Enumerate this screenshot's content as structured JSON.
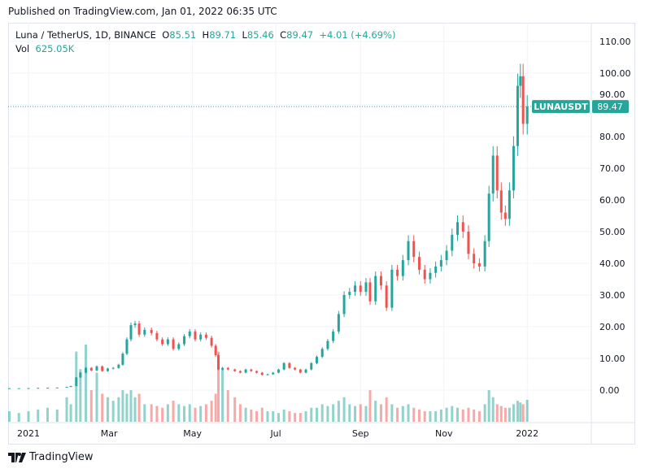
{
  "published": "Published on TradingView.com, Jan 01, 2022 06:35 UTC",
  "legend": {
    "symbol": "Luna / TetherUS, 1D, BINANCE",
    "o_label": "O",
    "o": "85.51",
    "h_label": "H",
    "h": "89.71",
    "l_label": "L",
    "l": "85.46",
    "c_label": "C",
    "c": "89.47",
    "change": "+4.01 (+4.69%)",
    "vol_label": "Vol",
    "vol": "625.05K"
  },
  "price_tag": {
    "symbol": "LUNAUSDT",
    "price": "89.47"
  },
  "logo": {
    "text": "TradingView"
  },
  "colors": {
    "up": "#26a69a",
    "down": "#ef5350",
    "grid": "#f0f3fa"
  },
  "chart_data": {
    "type": "candlestick",
    "y_ticks": [
      "110.00",
      "100.00",
      "90.00",
      "80.00",
      "70.00",
      "60.00",
      "50.00",
      "40.00",
      "30.00",
      "20.00",
      "10.00",
      "0.00"
    ],
    "x_ticks": [
      {
        "label": "2021",
        "date": "2021-01-01"
      },
      {
        "label": "Mar",
        "date": "2021-03-01"
      },
      {
        "label": "May",
        "date": "2021-05-01"
      },
      {
        "label": "Jul",
        "date": "2021-07-01"
      },
      {
        "label": "Sep",
        "date": "2021-09-01"
      },
      {
        "label": "Nov",
        "date": "2021-11-01"
      },
      {
        "label": "2022",
        "date": "2022-01-01"
      }
    ],
    "ylim": [
      0,
      110
    ],
    "last_price": 89.47,
    "series": [
      [
        "2020-12-18",
        0.6,
        300
      ],
      [
        "2020-12-25",
        0.6,
        250
      ],
      [
        "2021-01-01",
        0.65,
        300
      ],
      [
        "2021-01-08",
        0.7,
        350
      ],
      [
        "2021-01-15",
        0.75,
        400
      ],
      [
        "2021-01-22",
        0.8,
        350
      ],
      [
        "2021-01-29",
        1.0,
        700
      ],
      [
        "2021-02-01",
        1.3,
        500
      ],
      [
        "2021-02-05",
        4.0,
        2000
      ],
      [
        "2021-02-08",
        5.5,
        1500
      ],
      [
        "2021-02-12",
        7.0,
        2200
      ],
      [
        "2021-02-16",
        6.2,
        900
      ],
      [
        "2021-02-20",
        7.5,
        1400
      ],
      [
        "2021-02-24",
        6.0,
        800
      ],
      [
        "2021-02-28",
        6.8,
        700
      ],
      [
        "2021-03-04",
        7.0,
        600
      ],
      [
        "2021-03-08",
        8.0,
        700
      ],
      [
        "2021-03-11",
        11.5,
        900
      ],
      [
        "2021-03-14",
        16.0,
        800
      ],
      [
        "2021-03-17",
        20.5,
        900
      ],
      [
        "2021-03-20",
        21.0,
        700
      ],
      [
        "2021-03-23",
        17.5,
        800
      ],
      [
        "2021-03-27",
        19.0,
        500
      ],
      [
        "2021-04-01",
        18.0,
        500
      ],
      [
        "2021-04-05",
        16.0,
        450
      ],
      [
        "2021-04-09",
        14.5,
        400
      ],
      [
        "2021-04-13",
        16.0,
        500
      ],
      [
        "2021-04-17",
        13.0,
        600
      ],
      [
        "2021-04-21",
        14.5,
        500
      ],
      [
        "2021-04-25",
        17.0,
        450
      ],
      [
        "2021-04-29",
        18.5,
        500
      ],
      [
        "2021-05-03",
        16.0,
        400
      ],
      [
        "2021-05-07",
        17.5,
        450
      ],
      [
        "2021-05-11",
        16.5,
        500
      ],
      [
        "2021-05-15",
        14.0,
        600
      ],
      [
        "2021-05-18",
        11.0,
        800
      ],
      [
        "2021-05-20",
        6.5,
        2000
      ],
      [
        "2021-05-23",
        7.0,
        1500
      ],
      [
        "2021-05-27",
        6.5,
        900
      ],
      [
        "2021-06-01",
        6.0,
        700
      ],
      [
        "2021-06-05",
        5.5,
        500
      ],
      [
        "2021-06-09",
        6.5,
        400
      ],
      [
        "2021-06-13",
        6.0,
        350
      ],
      [
        "2021-06-17",
        5.5,
        300
      ],
      [
        "2021-06-21",
        4.8,
        400
      ],
      [
        "2021-06-25",
        5.0,
        300
      ],
      [
        "2021-06-29",
        5.5,
        300
      ],
      [
        "2021-07-03",
        6.5,
        250
      ],
      [
        "2021-07-07",
        8.5,
        350
      ],
      [
        "2021-07-11",
        7.0,
        300
      ],
      [
        "2021-07-15",
        6.5,
        250
      ],
      [
        "2021-07-19",
        5.5,
        250
      ],
      [
        "2021-07-23",
        6.5,
        300
      ],
      [
        "2021-07-27",
        8.5,
        400
      ],
      [
        "2021-07-31",
        10.5,
        400
      ],
      [
        "2021-08-04",
        13.0,
        500
      ],
      [
        "2021-08-08",
        15.5,
        450
      ],
      [
        "2021-08-12",
        18.5,
        500
      ],
      [
        "2021-08-16",
        24.0,
        600
      ],
      [
        "2021-08-20",
        30.0,
        700
      ],
      [
        "2021-08-24",
        31.0,
        500
      ],
      [
        "2021-08-28",
        33.0,
        450
      ],
      [
        "2021-09-01",
        31.0,
        500
      ],
      [
        "2021-09-05",
        34.0,
        450
      ],
      [
        "2021-09-08",
        28.0,
        900
      ],
      [
        "2021-09-12",
        36.0,
        600
      ],
      [
        "2021-09-16",
        33.0,
        500
      ],
      [
        "2021-09-20",
        26.0,
        700
      ],
      [
        "2021-09-24",
        38.0,
        500
      ],
      [
        "2021-09-28",
        36.0,
        400
      ],
      [
        "2021-10-02",
        41.0,
        450
      ],
      [
        "2021-10-06",
        47.0,
        500
      ],
      [
        "2021-10-10",
        42.0,
        400
      ],
      [
        "2021-10-14",
        38.0,
        350
      ],
      [
        "2021-10-18",
        35.0,
        300
      ],
      [
        "2021-10-22",
        37.0,
        300
      ],
      [
        "2021-10-26",
        39.0,
        300
      ],
      [
        "2021-10-30",
        41.0,
        350
      ],
      [
        "2021-11-03",
        44.0,
        400
      ],
      [
        "2021-11-07",
        49.0,
        450
      ],
      [
        "2021-11-11",
        53.0,
        400
      ],
      [
        "2021-11-15",
        50.0,
        350
      ],
      [
        "2021-11-19",
        43.0,
        400
      ],
      [
        "2021-11-23",
        40.0,
        350
      ],
      [
        "2021-11-27",
        39.0,
        300
      ],
      [
        "2021-12-01",
        47.0,
        500
      ],
      [
        "2021-12-04",
        62.0,
        900
      ],
      [
        "2021-12-07",
        74.0,
        700
      ],
      [
        "2021-12-10",
        63.0,
        500
      ],
      [
        "2021-12-13",
        56.0,
        450
      ],
      [
        "2021-12-16",
        54.0,
        400
      ],
      [
        "2021-12-19",
        63.0,
        400
      ],
      [
        "2021-12-22",
        77.0,
        500
      ],
      [
        "2021-12-25",
        96.0,
        600
      ],
      [
        "2021-12-27",
        99.0,
        550
      ],
      [
        "2021-12-29",
        84.0,
        500
      ],
      [
        "2022-01-01",
        89.47,
        625.05
      ]
    ],
    "series_fields": [
      "date",
      "close",
      "volume_k"
    ]
  }
}
